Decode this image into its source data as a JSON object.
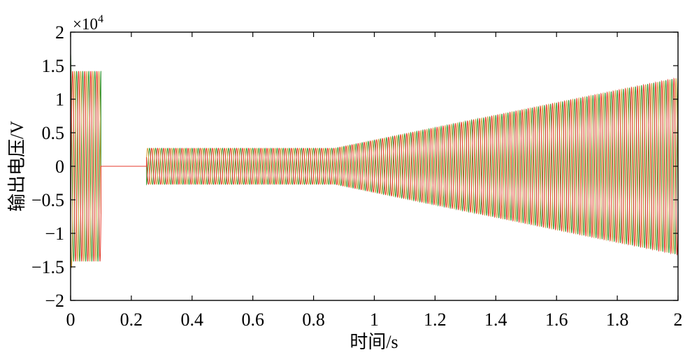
{
  "chart_data": {
    "type": "line",
    "xlabel": "时间/s",
    "ylabel": "输出电压/V",
    "y_multiplier_base": "×10",
    "y_multiplier_power": "4",
    "xlim": [
      0,
      2
    ],
    "ylim": [
      -2,
      2
    ],
    "x_ticks": [
      0,
      0.2,
      0.4,
      0.6,
      0.8,
      1,
      1.2,
      1.4,
      1.6,
      1.8,
      2
    ],
    "x_tick_labels": [
      "0",
      "0.2",
      "0.4",
      "0.6",
      "0.8",
      "1",
      "1.2",
      "1.4",
      "1.6",
      "1.8",
      "2"
    ],
    "y_ticks": [
      -2,
      -1.5,
      -1,
      -0.5,
      0,
      0.5,
      1,
      1.5,
      2
    ],
    "y_tick_labels": [
      "−2",
      "−1.5",
      "−1",
      "−0.5",
      "0",
      "0.5",
      "1",
      "1.5",
      "2"
    ],
    "grid": false,
    "frequency_hz": 50,
    "amplitude_envelope": [
      [
        0,
        1.68
      ],
      [
        0.005,
        1.42
      ],
      [
        0.1,
        1.42
      ],
      [
        0.1,
        0
      ],
      [
        0.25,
        0
      ],
      [
        0.25,
        0.27
      ],
      [
        0.87,
        0.27
      ],
      [
        2,
        1.32
      ]
    ],
    "series": [
      {
        "color": "#3c9c3c",
        "phase_deg": 90
      },
      {
        "color": "#d8a33f",
        "phase_deg": 210
      },
      {
        "color": "#e5392b",
        "phase_deg": -30
      }
    ]
  }
}
